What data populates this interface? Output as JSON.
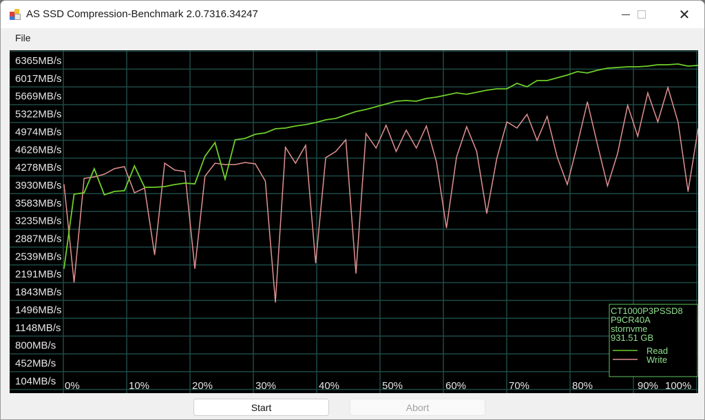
{
  "window": {
    "title": "AS SSD Compression-Benchmark 2.0.7316.34247",
    "minimize_icon": "minimize-icon",
    "maximize_icon": "maximize-icon",
    "close_icon": "close-icon"
  },
  "menu": {
    "file": "File"
  },
  "buttons": {
    "start": "Start",
    "abort": "Abort"
  },
  "legend": {
    "model": "CT1000P3PSSD8",
    "firmware": "P9CR40A",
    "driver": "stornvme",
    "capacity": "931.51 GB",
    "read": "Read",
    "write": "Write"
  },
  "colors": {
    "read": "#6fcf2a",
    "write": "#e39191",
    "grid": "#1d4a46",
    "legend_text": "#8fe08f",
    "background": "#000000"
  },
  "chart_data": {
    "type": "line",
    "grid": true,
    "legend_placement": "bottom-right",
    "yticks": [
      "6365MB/s",
      "6017MB/s",
      "5669MB/s",
      "5322MB/s",
      "4974MB/s",
      "4626MB/s",
      "4278MB/s",
      "3930MB/s",
      "3583MB/s",
      "3235MB/s",
      "2887MB/s",
      "2539MB/s",
      "2191MB/s",
      "1843MB/s",
      "1496MB/s",
      "1148MB/s",
      "800MB/s",
      "452MB/s",
      "104MB/s"
    ],
    "xticks": [
      "0%",
      "10%",
      "20%",
      "30%",
      "40%",
      "50%",
      "60%",
      "70%",
      "80%",
      "90%",
      "100%"
    ],
    "xlim": [
      0,
      100
    ],
    "ylim": [
      104,
      6365
    ],
    "series": [
      {
        "name": "Read",
        "values": [
          2277,
          3734,
          3761,
          4233,
          3720,
          3788,
          3801,
          4287,
          3869,
          3869,
          3882,
          3923,
          3950,
          3936,
          4476,
          4746,
          4031,
          4800,
          4827,
          4908,
          4935,
          5016,
          5029,
          5070,
          5097,
          5137,
          5191,
          5218,
          5286,
          5353,
          5394,
          5448,
          5502,
          5556,
          5569,
          5556,
          5610,
          5637,
          5677,
          5718,
          5691,
          5731,
          5771,
          5798,
          5798,
          5906,
          5839,
          5960,
          5960,
          6014,
          6068,
          6136,
          6109,
          6163,
          6203,
          6217,
          6230,
          6230,
          6244,
          6271,
          6271,
          6284,
          6244,
          6257
        ]
      },
      {
        "name": "Write",
        "values": [
          3923,
          2007,
          4044,
          4071,
          4125,
          4233,
          4274,
          3761,
          3855,
          2546,
          4341,
          4206,
          4179,
          2277,
          4085,
          4341,
          4314,
          4314,
          4355,
          4328,
          3990,
          1615,
          4651,
          4341,
          4692,
          2384,
          4449,
          4571,
          4800,
          2182,
          4921,
          4638,
          5083,
          4571,
          4989,
          4638,
          5070,
          4368,
          3073,
          4463,
          5056,
          4571,
          3356,
          4436,
          5151,
          5029,
          5299,
          4786,
          5259,
          4463,
          3923,
          4705,
          5542,
          4705,
          3896,
          4530,
          5475,
          4867,
          5718,
          5151,
          5825,
          5151,
          3788,
          5016
        ]
      }
    ]
  }
}
